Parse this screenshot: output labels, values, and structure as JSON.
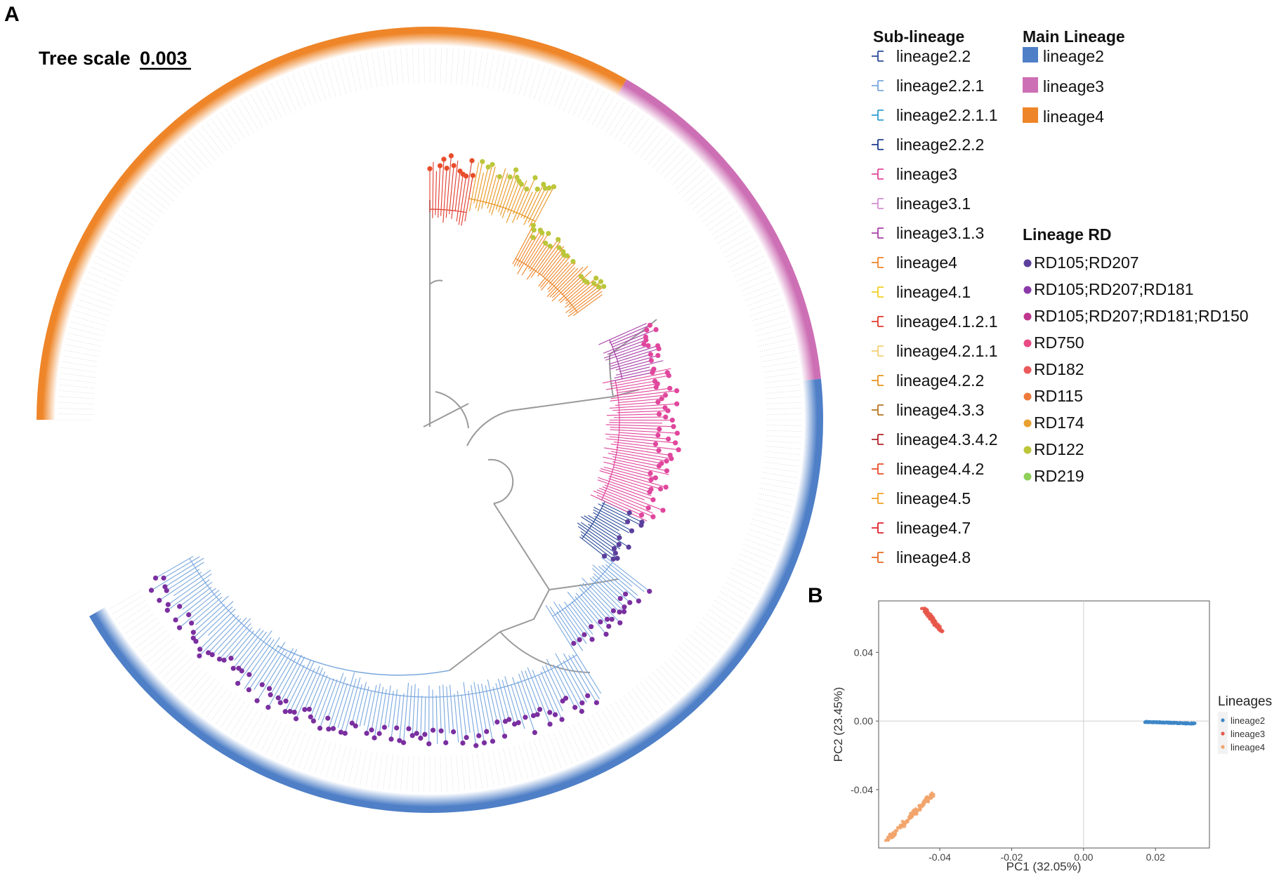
{
  "panels": {
    "a": "A",
    "b": "B"
  },
  "tree": {
    "scale_label": "Tree scale",
    "scale_value": "0.003",
    "main_lineages": [
      {
        "name": "lineage2",
        "color": "#4e7fc7",
        "start_deg": -6,
        "end_deg": 150
      },
      {
        "name": "lineage3",
        "color": "#cd6fb4",
        "start_deg": -60,
        "end_deg": -6
      },
      {
        "name": "lineage4",
        "color": "#ee8528",
        "start_deg": -180,
        "end_deg": -60
      }
    ]
  },
  "sublineage_legend": {
    "title": "Sub-lineage",
    "items": [
      {
        "label": "lineage2.2",
        "color": "#2b4c9b"
      },
      {
        "label": "lineage2.2.1",
        "color": "#7aa7de"
      },
      {
        "label": "lineage2.2.1.1",
        "color": "#2f9fd0"
      },
      {
        "label": "lineage2.2.2",
        "color": "#1f3f8f"
      },
      {
        "label": "lineage3",
        "color": "#e0479c"
      },
      {
        "label": "lineage3.1",
        "color": "#d38fd0"
      },
      {
        "label": "lineage3.1.3",
        "color": "#a73fa8"
      },
      {
        "label": "lineage4",
        "color": "#ee8528"
      },
      {
        "label": "lineage4.1",
        "color": "#f0d020"
      },
      {
        "label": "lineage4.1.2.1",
        "color": "#e03a2b"
      },
      {
        "label": "lineage4.2.1.1",
        "color": "#f4cf70"
      },
      {
        "label": "lineage4.2.2",
        "color": "#e8951d"
      },
      {
        "label": "lineage4.3.3",
        "color": "#b8741f"
      },
      {
        "label": "lineage4.3.4.2",
        "color": "#b0242a"
      },
      {
        "label": "lineage4.4.2",
        "color": "#e84c2a"
      },
      {
        "label": "lineage4.5",
        "color": "#f0a020"
      },
      {
        "label": "lineage4.7",
        "color": "#e0202e"
      },
      {
        "label": "lineage4.8",
        "color": "#e86a22"
      }
    ]
  },
  "main_lineage_legend": {
    "title": "Main Lineage",
    "items": [
      {
        "label": "lineage2",
        "color": "#4e7fc7"
      },
      {
        "label": "lineage3",
        "color": "#cd6fb4"
      },
      {
        "label": "lineage4",
        "color": "#ee8528"
      }
    ]
  },
  "rd_legend": {
    "title": "Lineage RD",
    "items": [
      {
        "label": "RD105;RD207",
        "color": "#5b3f9c"
      },
      {
        "label": "RD105;RD207;RD181",
        "color": "#8a3aa8"
      },
      {
        "label": "RD105;RD207;RD181;RD150",
        "color": "#c0368e"
      },
      {
        "label": "RD750",
        "color": "#e84a84"
      },
      {
        "label": "RD182",
        "color": "#ea5a5c"
      },
      {
        "label": "RD115",
        "color": "#ee7a3c"
      },
      {
        "label": "RD174",
        "color": "#eaa030"
      },
      {
        "label": "RD122",
        "color": "#bcc63a"
      },
      {
        "label": "RD219",
        "color": "#8ed05a"
      }
    ]
  },
  "chart_data": {
    "type": "scatter",
    "title": "",
    "xlabel": "PC1 (32.05%)",
    "ylabel": "PC2 (23.45%)",
    "xlim": [
      -0.057,
      0.035
    ],
    "ylim": [
      -0.074,
      0.07
    ],
    "xticks": [
      -0.04,
      -0.02,
      0.0,
      0.02
    ],
    "xtick_labels": [
      "-0.04",
      "-0.02",
      "0.00",
      "0.02"
    ],
    "yticks": [
      -0.04,
      0.0,
      0.04
    ],
    "ytick_labels": [
      "-0.04",
      "0.00",
      "0.04"
    ],
    "legend_title": "Lineages",
    "legend_position": "right",
    "series": [
      {
        "name": "lineage2",
        "color": "#3d86c6",
        "cluster": {
          "x_from": 0.017,
          "x_to": 0.031,
          "y_from": -0.0005,
          "y_to": -0.0015,
          "spread": 0.0006,
          "n": 160
        }
      },
      {
        "name": "lineage3",
        "color": "#e8574a",
        "cluster": {
          "x_from": -0.0445,
          "x_to": -0.0395,
          "y_from": 0.066,
          "y_to": 0.052,
          "spread": 0.0012,
          "n": 80
        }
      },
      {
        "name": "lineage4",
        "color": "#f2a46a",
        "cluster": {
          "x_from": -0.0545,
          "x_to": -0.0415,
          "y_from": -0.0695,
          "y_to": -0.0415,
          "spread": 0.0015,
          "n": 130
        }
      }
    ]
  }
}
